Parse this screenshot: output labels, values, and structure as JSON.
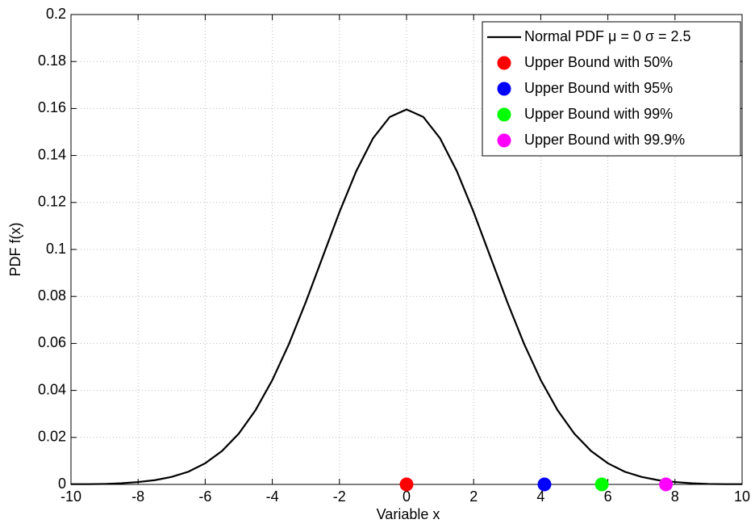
{
  "chart_data": {
    "type": "line",
    "xlabel": "Variable x",
    "ylabel": "PDF f(x)",
    "xlim": [
      -10,
      10
    ],
    "ylim": [
      0,
      0.2
    ],
    "xticks": [
      -10,
      -8,
      -6,
      -4,
      -2,
      0,
      2,
      4,
      6,
      8,
      10
    ],
    "yticks": [
      0,
      0.02,
      0.04,
      0.06,
      0.08,
      0.1,
      0.12,
      0.14,
      0.16,
      0.18,
      0.2
    ],
    "grid": true,
    "legend": "upper right",
    "series": [
      {
        "name": "Normal PDF μ = 0 σ = 2.5",
        "type": "line",
        "color": "#000000",
        "x": [
          -10,
          -9.5,
          -9,
          -8.5,
          -8,
          -7.5,
          -7,
          -6.5,
          -6,
          -5.5,
          -5,
          -4.5,
          -4,
          -3.5,
          -3,
          -2.5,
          -2,
          -1.5,
          -1,
          -0.5,
          0,
          0.5,
          1,
          1.5,
          2,
          2.5,
          3,
          3.5,
          4,
          4.5,
          5,
          5.5,
          6,
          6.5,
          7,
          7.5,
          8,
          8.5,
          9,
          9.5,
          10
        ],
        "values": [
          0.0001,
          0.0001,
          0.0002,
          0.0005,
          0.001,
          0.0018,
          0.0032,
          0.0054,
          0.009,
          0.0142,
          0.0216,
          0.0316,
          0.0444,
          0.0599,
          0.0777,
          0.0968,
          0.1159,
          0.1333,
          0.1473,
          0.1564,
          0.1596,
          0.1564,
          0.1473,
          0.1333,
          0.1159,
          0.0968,
          0.0777,
          0.0599,
          0.0444,
          0.0316,
          0.0216,
          0.0142,
          0.009,
          0.0054,
          0.0032,
          0.0018,
          0.001,
          0.0005,
          0.0002,
          0.0001,
          0.0001
        ]
      },
      {
        "name": "Upper Bound with 50%",
        "type": "scatter",
        "color": "#ff0000",
        "x": [
          0
        ],
        "values": [
          0
        ]
      },
      {
        "name": "Upper Bound with 95%",
        "type": "scatter",
        "color": "#0000ff",
        "x": [
          4.11
        ],
        "values": [
          0
        ]
      },
      {
        "name": "Upper Bound with 99%",
        "type": "scatter",
        "color": "#00ff00",
        "x": [
          5.82
        ],
        "values": [
          0
        ]
      },
      {
        "name": "Upper Bound with 99.9%",
        "type": "scatter",
        "color": "#ff00ff",
        "x": [
          7.73
        ],
        "values": [
          0
        ]
      }
    ]
  }
}
